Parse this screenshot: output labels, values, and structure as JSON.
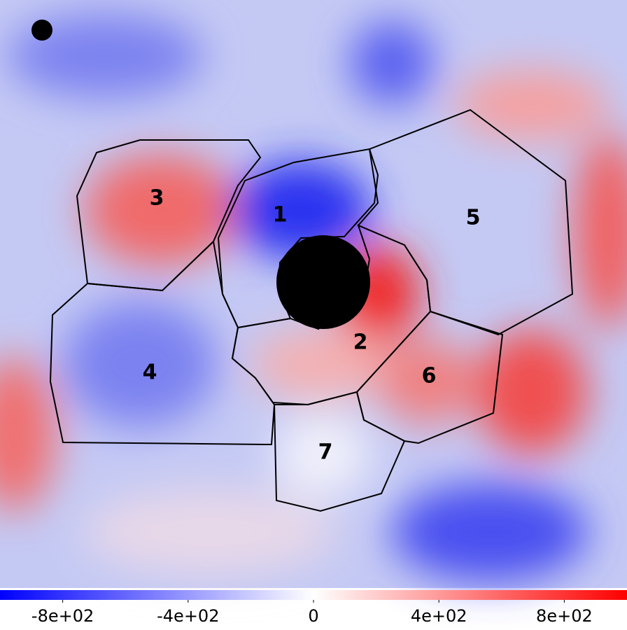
{
  "chart_data": {
    "type": "heatmap",
    "annotations": [
      "1",
      "2",
      "3",
      "4",
      "5",
      "6",
      "7"
    ],
    "clim": [
      -1000,
      1000
    ],
    "colormap": [
      "#0000ff",
      "#ffffff",
      "#ff0000"
    ],
    "cticks": [
      {
        "value": -800,
        "label": "-8e+02"
      },
      {
        "value": -400,
        "label": "-4e+02"
      },
      0,
      {
        "value": 400,
        "label": "4e+02"
      },
      {
        "value": 800,
        "label": "8e+02"
      }
    ]
  }
}
